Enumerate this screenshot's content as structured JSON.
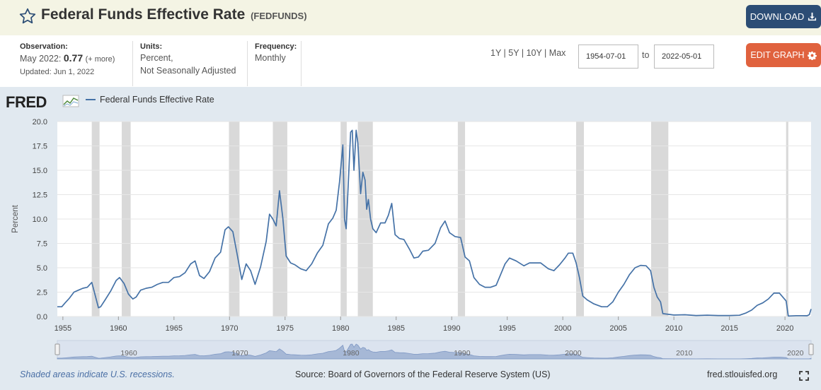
{
  "header": {
    "title": "Federal Funds Effective Rate",
    "series_id": "(FEDFUNDS)",
    "download_label": "DOWNLOAD",
    "icons": {
      "star": "star-outline-icon",
      "download": "download-icon"
    }
  },
  "meta": {
    "observation_label": "Observation:",
    "observation_date": "May 2022:",
    "observation_value": "0.77",
    "observation_more": "(+ more)",
    "updated": "Updated: Jun 1, 2022",
    "units_label": "Units:",
    "units_line1": "Percent,",
    "units_line2": "Not Seasonally Adjusted",
    "frequency_label": "Frequency:",
    "frequency_value": "Monthly"
  },
  "controls": {
    "range_1y": "1Y",
    "range_5y": "5Y",
    "range_10y": "10Y",
    "range_max": "Max",
    "start_date": "1954-07-01",
    "to_label": "to",
    "end_date": "2022-05-01",
    "edit_graph_label": "EDIT GRAPH",
    "icons": {
      "edit": "gear-icon"
    }
  },
  "graph": {
    "logo_text": "FRED",
    "legend_label": "Federal Funds Effective Rate",
    "footer_note": "Shaded areas indicate U.S. recessions.",
    "source": "Source: Board of Governors of the Federal Reserve System (US)",
    "site": "fred.stlouisfed.org",
    "colors": {
      "line": "#4572a7",
      "recession": "#d9d9d9",
      "background": "#e1e9f0",
      "plot": "#ffffff",
      "navigator": "#a6b8d6"
    }
  },
  "chart_data": {
    "type": "line",
    "title": "Federal Funds Effective Rate",
    "ylabel": "Percent",
    "xlabel": "",
    "xlim": [
      1954.5,
      2022.35
    ],
    "ylim": [
      0,
      20
    ],
    "y_ticks": [
      0.0,
      2.5,
      5.0,
      7.5,
      10.0,
      12.5,
      15.0,
      17.5,
      20.0
    ],
    "y_tick_labels": [
      "0.0",
      "2.5",
      "5.0",
      "7.5",
      "10.0",
      "12.5",
      "15.0",
      "17.5",
      "20.0"
    ],
    "x_ticks": [
      1955,
      1960,
      1965,
      1970,
      1975,
      1980,
      1985,
      1990,
      1995,
      2000,
      2005,
      2010,
      2015,
      2020
    ],
    "x_tick_labels": [
      "1955",
      "1960",
      "1965",
      "1970",
      "1975",
      "1980",
      "1985",
      "1990",
      "1995",
      "2000",
      "2005",
      "2010",
      "2015",
      "2020"
    ],
    "navigator_labels": [
      "1960",
      "1970",
      "1980",
      "1990",
      "2000",
      "2010",
      "2020"
    ],
    "navigator_ticks": [
      1960,
      1970,
      1980,
      1990,
      2000,
      2010,
      2020
    ],
    "recessions": [
      [
        1957.6,
        1958.3
      ],
      [
        1960.3,
        1961.1
      ],
      [
        1969.95,
        1970.9
      ],
      [
        1973.9,
        1975.2
      ],
      [
        1980.0,
        1980.55
      ],
      [
        1981.55,
        1982.9
      ],
      [
        1990.55,
        1991.2
      ],
      [
        2001.2,
        2001.9
      ],
      [
        2007.95,
        2009.5
      ],
      [
        2020.1,
        2020.3
      ]
    ],
    "series": [
      {
        "name": "Federal Funds Effective Rate",
        "x": [
          1954.5,
          1954.9,
          1955.2,
          1955.6,
          1956.0,
          1956.4,
          1956.8,
          1957.2,
          1957.6,
          1957.9,
          1958.2,
          1958.4,
          1958.8,
          1959.3,
          1959.8,
          1960.1,
          1960.5,
          1960.9,
          1961.3,
          1961.6,
          1962.0,
          1962.5,
          1963.0,
          1963.5,
          1964.0,
          1964.5,
          1965.0,
          1965.5,
          1966.0,
          1966.5,
          1966.9,
          1967.3,
          1967.7,
          1968.2,
          1968.7,
          1969.2,
          1969.6,
          1969.9,
          1970.3,
          1970.7,
          1971.1,
          1971.5,
          1971.9,
          1972.3,
          1972.8,
          1973.3,
          1973.6,
          1973.9,
          1974.2,
          1974.5,
          1974.8,
          1975.1,
          1975.5,
          1975.9,
          1976.4,
          1976.9,
          1977.4,
          1977.9,
          1978.4,
          1978.9,
          1979.3,
          1979.6,
          1979.9,
          1980.2,
          1980.35,
          1980.5,
          1980.65,
          1980.9,
          1981.05,
          1981.2,
          1981.4,
          1981.55,
          1981.8,
          1982.0,
          1982.2,
          1982.35,
          1982.5,
          1982.7,
          1982.9,
          1983.2,
          1983.6,
          1984.0,
          1984.3,
          1984.6,
          1984.9,
          1985.3,
          1985.7,
          1986.2,
          1986.6,
          1987.0,
          1987.4,
          1987.9,
          1988.5,
          1989.0,
          1989.4,
          1989.8,
          1990.3,
          1990.8,
          1991.2,
          1991.6,
          1992.0,
          1992.5,
          1993.0,
          1993.5,
          1994.0,
          1994.4,
          1994.8,
          1995.2,
          1995.8,
          1996.5,
          1997.0,
          1997.5,
          1998.0,
          1998.7,
          1999.2,
          1999.7,
          2000.2,
          2000.5,
          2000.9,
          2001.2,
          2001.5,
          2001.8,
          2002.2,
          2002.8,
          2003.5,
          2004.0,
          2004.5,
          2005.0,
          2005.5,
          2006.0,
          2006.5,
          2007.0,
          2007.5,
          2007.9,
          2008.2,
          2008.5,
          2008.8,
          2009.0,
          2010.0,
          2011.0,
          2012.0,
          2013.0,
          2014.0,
          2015.0,
          2015.9,
          2016.5,
          2017.0,
          2017.5,
          2018.0,
          2018.5,
          2019.0,
          2019.5,
          2019.8,
          2020.1,
          2020.3,
          2021.0,
          2021.5,
          2022.0,
          2022.2,
          2022.35
        ],
        "y": [
          1.0,
          1.0,
          1.4,
          1.9,
          2.5,
          2.7,
          2.9,
          3.0,
          3.5,
          2.2,
          0.9,
          1.0,
          1.7,
          2.6,
          3.7,
          4.0,
          3.4,
          2.3,
          1.8,
          2.0,
          2.7,
          2.9,
          3.0,
          3.3,
          3.5,
          3.5,
          4.0,
          4.1,
          4.5,
          5.4,
          5.7,
          4.2,
          3.9,
          4.6,
          6.0,
          6.6,
          8.9,
          9.2,
          8.7,
          6.3,
          3.8,
          5.4,
          4.7,
          3.3,
          5.1,
          7.7,
          10.5,
          10.0,
          9.3,
          12.9,
          10.1,
          6.2,
          5.5,
          5.3,
          4.9,
          4.7,
          5.4,
          6.5,
          7.3,
          9.5,
          10.1,
          10.9,
          13.8,
          17.6,
          10.0,
          9.0,
          12.7,
          18.9,
          19.1,
          15.0,
          19.1,
          17.8,
          12.6,
          14.8,
          14.0,
          11.0,
          12.0,
          10.0,
          9.0,
          8.6,
          9.6,
          9.6,
          10.4,
          11.6,
          8.4,
          8.0,
          7.9,
          6.9,
          6.0,
          6.1,
          6.7,
          6.8,
          7.5,
          9.1,
          9.8,
          8.6,
          8.2,
          8.1,
          6.1,
          5.7,
          4.0,
          3.3,
          3.0,
          3.0,
          3.2,
          4.3,
          5.4,
          6.0,
          5.7,
          5.2,
          5.5,
          5.5,
          5.5,
          4.9,
          4.7,
          5.3,
          6.0,
          6.5,
          6.5,
          5.5,
          4.0,
          2.1,
          1.7,
          1.3,
          1.0,
          1.0,
          1.5,
          2.5,
          3.3,
          4.3,
          5.0,
          5.25,
          5.2,
          4.7,
          3.0,
          2.0,
          1.5,
          0.3,
          0.15,
          0.18,
          0.1,
          0.14,
          0.1,
          0.1,
          0.13,
          0.37,
          0.66,
          1.15,
          1.4,
          1.8,
          2.4,
          2.4,
          2.0,
          1.6,
          0.05,
          0.09,
          0.09,
          0.08,
          0.2,
          0.77
        ]
      }
    ]
  }
}
